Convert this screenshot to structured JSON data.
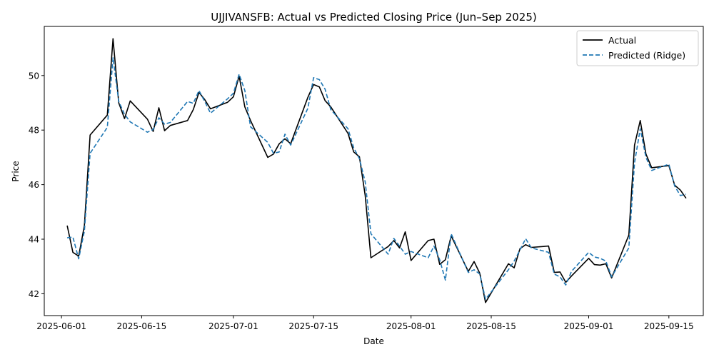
{
  "chart_data": {
    "type": "line",
    "title": "UJJIVANSFB: Actual vs Predicted Closing Price (Jun–Sep 2025)",
    "xlabel": "Date",
    "ylabel": "Price",
    "grid": false,
    "legend_position": "top-right",
    "xlim": [
      "2025-05-29",
      "2025-09-21"
    ],
    "ylim": [
      41.2,
      51.8
    ],
    "x_ticks": [
      "2025-06-01",
      "2025-06-15",
      "2025-07-01",
      "2025-07-15",
      "2025-08-01",
      "2025-08-15",
      "2025-09-01",
      "2025-09-15"
    ],
    "y_ticks": [
      42,
      44,
      46,
      48,
      50
    ],
    "series": [
      {
        "name": "Actual",
        "color": "#000000",
        "style": "solid",
        "points": [
          [
            "2025-06-02",
            44.5
          ],
          [
            "2025-06-03",
            43.52
          ],
          [
            "2025-06-04",
            43.38
          ],
          [
            "2025-06-05",
            44.5
          ],
          [
            "2025-06-06",
            47.82
          ],
          [
            "2025-06-09",
            48.55
          ],
          [
            "2025-06-10",
            51.35
          ],
          [
            "2025-06-11",
            49.0
          ],
          [
            "2025-06-12",
            48.42
          ],
          [
            "2025-06-13",
            49.07
          ],
          [
            "2025-06-16",
            48.4
          ],
          [
            "2025-06-17",
            47.95
          ],
          [
            "2025-06-18",
            48.82
          ],
          [
            "2025-06-19",
            47.98
          ],
          [
            "2025-06-20",
            48.17
          ],
          [
            "2025-06-23",
            48.35
          ],
          [
            "2025-06-24",
            48.75
          ],
          [
            "2025-06-25",
            49.38
          ],
          [
            "2025-06-26",
            49.12
          ],
          [
            "2025-06-27",
            48.78
          ],
          [
            "2025-06-30",
            49.02
          ],
          [
            "2025-07-01",
            49.22
          ],
          [
            "2025-07-02",
            49.98
          ],
          [
            "2025-07-03",
            48.85
          ],
          [
            "2025-07-04",
            48.35
          ],
          [
            "2025-07-07",
            47.0
          ],
          [
            "2025-07-08",
            47.12
          ],
          [
            "2025-07-09",
            47.5
          ],
          [
            "2025-07-10",
            47.68
          ],
          [
            "2025-07-11",
            47.5
          ],
          [
            "2025-07-14",
            49.2
          ],
          [
            "2025-07-15",
            49.67
          ],
          [
            "2025-07-16",
            49.58
          ],
          [
            "2025-07-17",
            49.08
          ],
          [
            "2025-07-18",
            48.85
          ],
          [
            "2025-07-21",
            47.88
          ],
          [
            "2025-07-22",
            47.2
          ],
          [
            "2025-07-23",
            47.02
          ],
          [
            "2025-07-24",
            45.6
          ],
          [
            "2025-07-25",
            43.32
          ],
          [
            "2025-07-28",
            43.73
          ],
          [
            "2025-07-29",
            43.95
          ],
          [
            "2025-07-30",
            43.68
          ],
          [
            "2025-07-31",
            44.27
          ],
          [
            "2025-08-01",
            43.22
          ],
          [
            "2025-08-04",
            43.95
          ],
          [
            "2025-08-05",
            44.0
          ],
          [
            "2025-08-06",
            43.08
          ],
          [
            "2025-08-07",
            43.25
          ],
          [
            "2025-08-08",
            44.12
          ],
          [
            "2025-08-11",
            42.82
          ],
          [
            "2025-08-12",
            43.18
          ],
          [
            "2025-08-13",
            42.75
          ],
          [
            "2025-08-14",
            41.68
          ],
          [
            "2025-08-18",
            43.1
          ],
          [
            "2025-08-19",
            42.95
          ],
          [
            "2025-08-20",
            43.65
          ],
          [
            "2025-08-21",
            43.8
          ],
          [
            "2025-08-22",
            43.7
          ],
          [
            "2025-08-25",
            43.75
          ],
          [
            "2025-08-26",
            42.78
          ],
          [
            "2025-08-27",
            42.8
          ],
          [
            "2025-08-28",
            42.42
          ],
          [
            "2025-08-29",
            42.65
          ],
          [
            "2025-09-01",
            43.3
          ],
          [
            "2025-09-02",
            43.07
          ],
          [
            "2025-09-03",
            43.05
          ],
          [
            "2025-09-04",
            43.1
          ],
          [
            "2025-09-05",
            42.58
          ],
          [
            "2025-09-08",
            44.15
          ],
          [
            "2025-09-09",
            47.45
          ],
          [
            "2025-09-10",
            48.35
          ],
          [
            "2025-09-11",
            47.12
          ],
          [
            "2025-09-12",
            46.62
          ],
          [
            "2025-09-15",
            46.7
          ],
          [
            "2025-09-16",
            45.98
          ],
          [
            "2025-09-17",
            45.8
          ],
          [
            "2025-09-18",
            45.5
          ]
        ]
      },
      {
        "name": "Predicted (Ridge)",
        "color": "#1f77b4",
        "style": "dashed",
        "points": [
          [
            "2025-06-02",
            44.05
          ],
          [
            "2025-06-03",
            44.08
          ],
          [
            "2025-06-04",
            43.28
          ],
          [
            "2025-06-05",
            44.3
          ],
          [
            "2025-06-06",
            47.15
          ],
          [
            "2025-06-09",
            48.1
          ],
          [
            "2025-06-10",
            50.65
          ],
          [
            "2025-06-11",
            49.05
          ],
          [
            "2025-06-12",
            48.58
          ],
          [
            "2025-06-13",
            48.3
          ],
          [
            "2025-06-16",
            47.92
          ],
          [
            "2025-06-17",
            48.02
          ],
          [
            "2025-06-18",
            48.45
          ],
          [
            "2025-06-19",
            48.22
          ],
          [
            "2025-06-20",
            48.28
          ],
          [
            "2025-06-23",
            49.05
          ],
          [
            "2025-06-24",
            48.98
          ],
          [
            "2025-06-25",
            49.45
          ],
          [
            "2025-06-26",
            49.05
          ],
          [
            "2025-06-27",
            48.62
          ],
          [
            "2025-06-30",
            49.15
          ],
          [
            "2025-07-01",
            49.35
          ],
          [
            "2025-07-02",
            50.05
          ],
          [
            "2025-07-03",
            49.45
          ],
          [
            "2025-07-04",
            48.12
          ],
          [
            "2025-07-07",
            47.55
          ],
          [
            "2025-07-08",
            47.15
          ],
          [
            "2025-07-09",
            47.2
          ],
          [
            "2025-07-10",
            47.85
          ],
          [
            "2025-07-11",
            47.45
          ],
          [
            "2025-07-14",
            48.8
          ],
          [
            "2025-07-15",
            49.92
          ],
          [
            "2025-07-16",
            49.85
          ],
          [
            "2025-07-17",
            49.5
          ],
          [
            "2025-07-18",
            48.75
          ],
          [
            "2025-07-21",
            48.05
          ],
          [
            "2025-07-22",
            47.35
          ],
          [
            "2025-07-23",
            46.95
          ],
          [
            "2025-07-24",
            46.1
          ],
          [
            "2025-07-25",
            44.2
          ],
          [
            "2025-07-28",
            43.45
          ],
          [
            "2025-07-29",
            44.03
          ],
          [
            "2025-07-30",
            43.75
          ],
          [
            "2025-07-31",
            43.45
          ],
          [
            "2025-08-01",
            43.55
          ],
          [
            "2025-08-04",
            43.32
          ],
          [
            "2025-08-05",
            43.75
          ],
          [
            "2025-08-06",
            43.25
          ],
          [
            "2025-08-07",
            42.5
          ],
          [
            "2025-08-08",
            44.2
          ],
          [
            "2025-08-11",
            42.78
          ],
          [
            "2025-08-12",
            42.88
          ],
          [
            "2025-08-13",
            42.72
          ],
          [
            "2025-08-14",
            41.8
          ],
          [
            "2025-08-18",
            42.88
          ],
          [
            "2025-08-19",
            43.2
          ],
          [
            "2025-08-20",
            43.6
          ],
          [
            "2025-08-21",
            44.02
          ],
          [
            "2025-08-22",
            43.68
          ],
          [
            "2025-08-25",
            43.52
          ],
          [
            "2025-08-26",
            42.72
          ],
          [
            "2025-08-27",
            42.62
          ],
          [
            "2025-08-28",
            42.32
          ],
          [
            "2025-08-29",
            42.82
          ],
          [
            "2025-09-01",
            43.52
          ],
          [
            "2025-09-02",
            43.35
          ],
          [
            "2025-09-03",
            43.3
          ],
          [
            "2025-09-04",
            43.2
          ],
          [
            "2025-09-05",
            42.62
          ],
          [
            "2025-09-08",
            43.68
          ],
          [
            "2025-09-09",
            46.8
          ],
          [
            "2025-09-10",
            48.05
          ],
          [
            "2025-09-11",
            47.0
          ],
          [
            "2025-09-12",
            46.52
          ],
          [
            "2025-09-15",
            46.75
          ],
          [
            "2025-09-16",
            45.95
          ],
          [
            "2025-09-17",
            45.6
          ],
          [
            "2025-09-18",
            45.65
          ]
        ]
      }
    ]
  }
}
